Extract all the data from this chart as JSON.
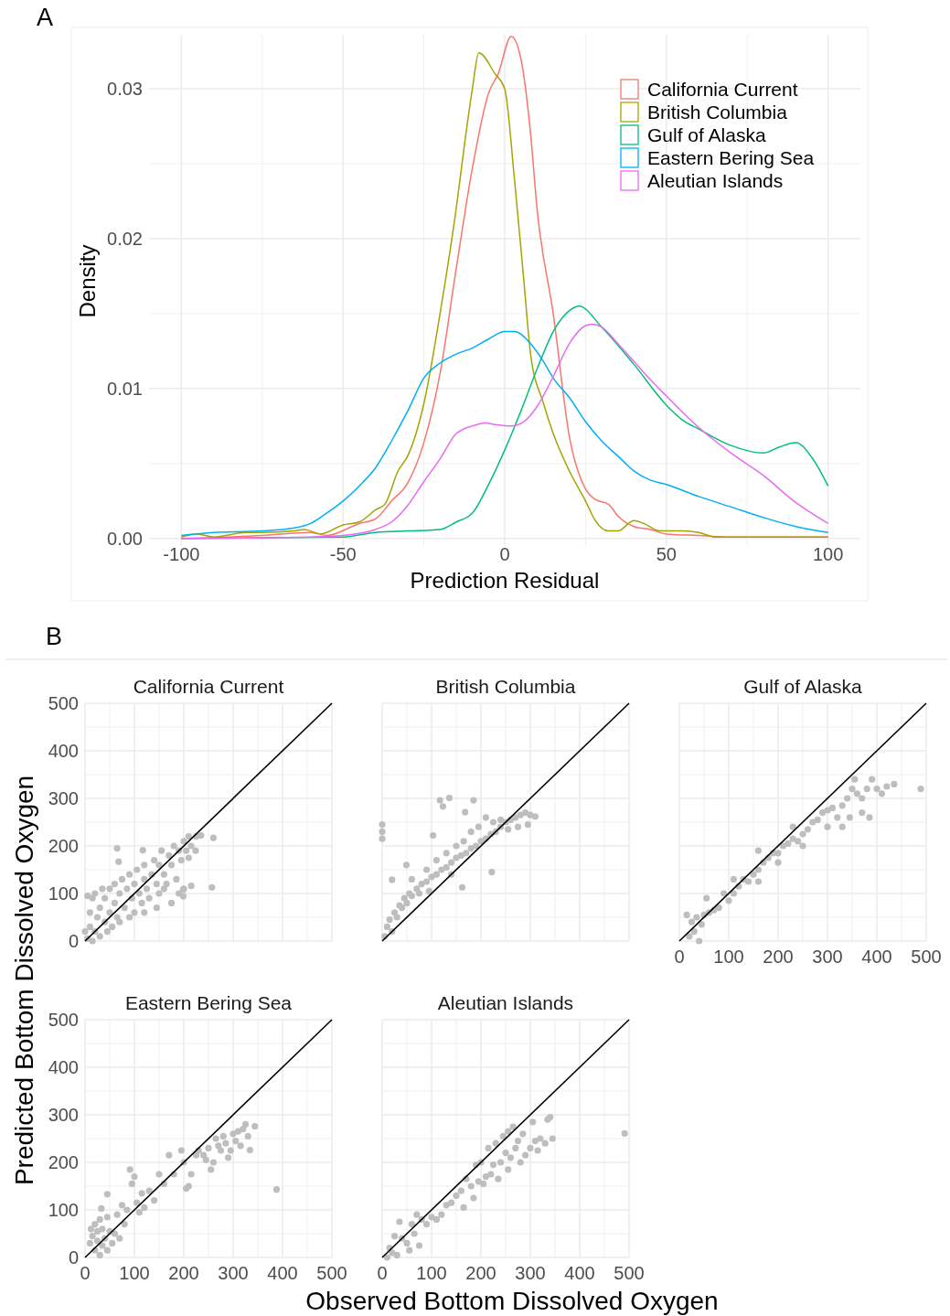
{
  "chart_data": [
    {
      "type": "line",
      "annotations": [
        "A"
      ],
      "xlabel": "Prediction Residual",
      "ylabel": "Density",
      "legend": "top right",
      "grid": true,
      "xlim": [
        -110,
        110
      ],
      "ylim": [
        -0.0005,
        0.0336
      ],
      "xticks": [
        -100,
        {
          "value": -75,
          "label": null
        },
        -50,
        {
          "value": -25,
          "label": null
        },
        0,
        {
          "value": 25,
          "label": null
        },
        50,
        {
          "value": 75,
          "label": null
        },
        100
      ],
      "yticks": [
        {
          "value": 0,
          "label": "0.00"
        },
        {
          "value": 0.005,
          "label": null
        },
        {
          "value": 0.01,
          "label": "0.01"
        },
        {
          "value": 0.015,
          "label": null
        },
        {
          "value": 0.02,
          "label": "0.02"
        },
        {
          "value": 0.025,
          "label": null
        },
        {
          "value": 0.03,
          "label": "0.03"
        }
      ],
      "series": [
        {
          "name": "California Current",
          "color": "#f8766d",
          "x": [
            -100,
            -75,
            -60,
            -55,
            -45,
            -40,
            -35,
            -30,
            -25,
            -20,
            -15,
            -10,
            -5,
            -2,
            2,
            5,
            8,
            10,
            15,
            20,
            25,
            28,
            32,
            35,
            40,
            45,
            50,
            60,
            70,
            100
          ],
          "values": [
            0,
            0.0002,
            0.0004,
            0.0002,
            0.001,
            0.0013,
            0.0025,
            0.0037,
            0.0064,
            0.011,
            0.018,
            0.0247,
            0.0297,
            0.031,
            0.0335,
            0.032,
            0.027,
            0.022,
            0.015,
            0.0068,
            0.0033,
            0.0026,
            0.0023,
            0.0015,
            0.0008,
            0.0006,
            0.0003,
            0.0002,
            0.0001,
            0.0001
          ]
        },
        {
          "name": "British Columbia",
          "color": "#a3a500",
          "x": [
            -100,
            -95,
            -90,
            -80,
            -75,
            -65,
            -62,
            -57,
            -50,
            -45,
            -40,
            -37,
            -33,
            -30,
            -25,
            -20,
            -15,
            -12,
            -10,
            -8,
            -3,
            0,
            3,
            6,
            8,
            12,
            15,
            20,
            25,
            28,
            32,
            35,
            40,
            43,
            48,
            55,
            60,
            65,
            100
          ],
          "values": [
            0.0001,
            0.0003,
            0.0001,
            0.0004,
            0.0004,
            0.0005,
            0.0006,
            0.0003,
            0.0009,
            0.0011,
            0.0019,
            0.0023,
            0.0045,
            0.0055,
            0.009,
            0.015,
            0.022,
            0.027,
            0.03,
            0.0324,
            0.031,
            0.03,
            0.024,
            0.017,
            0.0123,
            0.009,
            0.007,
            0.0045,
            0.0025,
            0.0012,
            0.0005,
            0.0005,
            0.0012,
            0.001,
            0.0005,
            0.0005,
            0.0004,
            0.0001,
            0.0001
          ]
        },
        {
          "name": "Gulf of Alaska",
          "color": "#00bf7d",
          "x": [
            -100,
            -50,
            -40,
            -30,
            -20,
            -15,
            -10,
            -5,
            0,
            5,
            10,
            15,
            20,
            23,
            30,
            40,
            50,
            55,
            60,
            70,
            80,
            85,
            90,
            95,
            100
          ],
          "values": [
            0,
            0.0001,
            0.0004,
            0.0005,
            0.0006,
            0.0011,
            0.0017,
            0.0036,
            0.0059,
            0.0085,
            0.0113,
            0.0138,
            0.0152,
            0.0155,
            0.0141,
            0.0116,
            0.0089,
            0.0079,
            0.0073,
            0.0062,
            0.0057,
            0.0061,
            0.0064,
            0.0054,
            0.0035
          ]
        },
        {
          "name": "Eastern Bering Sea",
          "color": "#00b0f6",
          "x": [
            -100,
            -90,
            -75,
            -65,
            -60,
            -55,
            -50,
            -45,
            -40,
            -35,
            -30,
            -25,
            -20,
            -15,
            -10,
            -5,
            0,
            3,
            8,
            12,
            15,
            20,
            25,
            30,
            35,
            40,
            45,
            50,
            60,
            70,
            80,
            90,
            100
          ],
          "values": [
            0.0002,
            0.0004,
            0.0005,
            0.0007,
            0.001,
            0.0017,
            0.0025,
            0.0035,
            0.0047,
            0.0065,
            0.0085,
            0.0107,
            0.0117,
            0.0123,
            0.0127,
            0.0133,
            0.0138,
            0.0138,
            0.013,
            0.0118,
            0.0107,
            0.0094,
            0.0078,
            0.0065,
            0.0055,
            0.0045,
            0.0039,
            0.0036,
            0.0028,
            0.0021,
            0.0014,
            0.0008,
            0.0004
          ]
        },
        {
          "name": "Aleutian Islands",
          "color": "#e76bf3",
          "x": [
            -100,
            -60,
            -50,
            -40,
            -35,
            -30,
            -25,
            -20,
            -15,
            -10,
            -6,
            -3,
            2,
            6,
            10,
            15,
            20,
            25,
            27,
            30,
            35,
            40,
            45,
            50,
            60,
            70,
            80,
            90,
            100
          ],
          "values": [
            0,
            0.0001,
            0.0002,
            0.0006,
            0.0011,
            0.0022,
            0.0038,
            0.0053,
            0.007,
            0.0075,
            0.0077,
            0.0076,
            0.0075,
            0.0078,
            0.0088,
            0.0108,
            0.013,
            0.0142,
            0.0143,
            0.0141,
            0.013,
            0.0118,
            0.0106,
            0.0095,
            0.0074,
            0.0057,
            0.0042,
            0.0024,
            0.001
          ]
        }
      ]
    },
    {
      "type": "scatter",
      "title": "California Current",
      "annotations": [
        "B"
      ],
      "ylabel": "Predicted Bottom Dissolved Oxygen",
      "grid": true,
      "tick_labels": "y",
      "xlim": [
        0,
        500
      ],
      "ylim": [
        0,
        500
      ],
      "xticks": [
        0,
        {
          "value": 50,
          "label": null
        },
        100,
        {
          "value": 150,
          "label": null
        },
        200,
        {
          "value": 250,
          "label": null
        },
        300,
        {
          "value": 350,
          "label": null
        },
        400,
        {
          "value": 450,
          "label": null
        },
        500
      ],
      "yticks": [
        0,
        {
          "value": 50,
          "label": null
        },
        100,
        {
          "value": 150,
          "label": null
        },
        200,
        {
          "value": 250,
          "label": null
        },
        300,
        {
          "value": 350,
          "label": null
        },
        400,
        {
          "value": 450,
          "label": null
        },
        500
      ],
      "series": [
        {
          "marker": "circle",
          "color": "#bebebe",
          "x": [
            5,
            10,
            10,
            15,
            20,
            20,
            25,
            30,
            30,
            35,
            40,
            40,
            45,
            50,
            50,
            55,
            60,
            60,
            65,
            70,
            70,
            75,
            80,
            85,
            90,
            90,
            95,
            100,
            100,
            105,
            110,
            115,
            120,
            120,
            125,
            130,
            135,
            140,
            145,
            150,
            150,
            155,
            160,
            165,
            170,
            175,
            180,
            185,
            190,
            195,
            200,
            205,
            210,
            215,
            190,
            200,
            175,
            160,
            225,
            210,
            145,
            120,
            5,
            15,
            0,
            65,
            68,
            117,
            235,
            260,
            199,
            215,
            257,
            199,
            224
          ],
          "values": [
            5,
            30,
            60,
            90,
            20,
            100,
            50,
            10,
            70,
            110,
            40,
            90,
            20,
            60,
            110,
            30,
            80,
            120,
            50,
            100,
            40,
            130,
            70,
            110,
            50,
            140,
            90,
            120,
            60,
            150,
            100,
            80,
            130,
            160,
            110,
            90,
            140,
            170,
            120,
            100,
            160,
            190,
            140,
            120,
            180,
            160,
            200,
            130,
            190,
            170,
            210,
            190,
            220,
            200,
            100,
            110,
            80,
            110,
            220,
            175,
            70,
            60,
            95,
            0,
            20,
            195,
            167,
            191,
            222,
            217,
            108,
            116,
            113,
            94,
            190
          ]
        },
        {
          "type": "line",
          "color": "#000000",
          "x": [
            0,
            500
          ],
          "values": [
            0,
            500
          ]
        }
      ]
    },
    {
      "type": "scatter",
      "title": "British Columbia",
      "grid": true,
      "tick_labels": false,
      "xlim": [
        0,
        500
      ],
      "ylim": [
        0,
        500
      ],
      "xticks": [
        0,
        {
          "value": 50,
          "label": null
        },
        100,
        {
          "value": 150,
          "label": null
        },
        200,
        {
          "value": 250,
          "label": null
        },
        300,
        {
          "value": 350,
          "label": null
        },
        400,
        {
          "value": 450,
          "label": null
        },
        500
      ],
      "yticks": [
        0,
        {
          "value": 50,
          "label": null
        },
        100,
        {
          "value": 150,
          "label": null
        },
        200,
        {
          "value": 250,
          "label": null
        },
        300,
        {
          "value": 350,
          "label": null
        },
        400,
        {
          "value": 450,
          "label": null
        },
        500
      ],
      "series": [
        {
          "marker": "circle",
          "color": "#bebebe",
          "x": [
            0,
            0,
            0,
            5,
            10,
            15,
            20,
            25,
            30,
            35,
            40,
            45,
            50,
            55,
            60,
            70,
            75,
            80,
            90,
            100,
            110,
            120,
            130,
            140,
            150,
            160,
            170,
            180,
            190,
            200,
            210,
            220,
            230,
            240,
            250,
            260,
            270,
            280,
            290,
            300,
            310,
            295,
            275,
            255,
            240,
            225,
            210,
            195,
            180,
            165,
            150,
            130,
            110,
            90,
            60,
            117,
            136,
            123,
            185,
            103,
            168,
            49,
            20,
            222,
            162,
            95,
            140
          ],
          "values": [
            215,
            230,
            245,
            10,
            30,
            45,
            20,
            60,
            50,
            75,
            70,
            90,
            80,
            100,
            95,
            110,
            100,
            120,
            125,
            135,
            140,
            150,
            155,
            165,
            175,
            180,
            185,
            195,
            200,
            210,
            215,
            225,
            230,
            240,
            250,
            255,
            260,
            265,
            270,
            265,
            262,
            245,
            240,
            235,
            255,
            250,
            260,
            240,
            230,
            210,
            200,
            185,
            170,
            150,
            130,
            296,
            301,
            283,
            296,
            222,
            271,
            160,
            129,
            145,
            113,
            105,
            140
          ]
        },
        {
          "type": "line",
          "color": "#000000",
          "x": [
            0,
            500
          ],
          "values": [
            0,
            500
          ]
        }
      ]
    },
    {
      "type": "scatter",
      "title": "Gulf of Alaska",
      "grid": true,
      "tick_labels": "x",
      "xlim": [
        0,
        500
      ],
      "ylim": [
        0,
        500
      ],
      "xticks": [
        0,
        {
          "value": 50,
          "label": null
        },
        100,
        {
          "value": 150,
          "label": null
        },
        200,
        {
          "value": 250,
          "label": null
        },
        300,
        {
          "value": 350,
          "label": null
        },
        400,
        {
          "value": 450,
          "label": null
        },
        500
      ],
      "yticks": [
        0,
        {
          "value": 50,
          "label": null
        },
        100,
        {
          "value": 150,
          "label": null
        },
        200,
        {
          "value": 250,
          "label": null
        },
        300,
        {
          "value": 350,
          "label": null
        },
        400,
        {
          "value": 450,
          "label": null
        },
        500
      ],
      "series": [
        {
          "marker": "circle",
          "color": "#bebebe",
          "x": [
            15,
            20,
            25,
            30,
            35,
            40,
            45,
            50,
            60,
            70,
            80,
            90,
            100,
            110,
            120,
            130,
            140,
            150,
            160,
            170,
            180,
            190,
            200,
            210,
            220,
            230,
            240,
            250,
            260,
            270,
            280,
            290,
            300,
            310,
            320,
            330,
            340,
            350,
            355,
            360,
            370,
            380,
            390,
            400,
            410,
            420,
            435,
            300,
            330,
            345,
            370,
            385,
            250,
            200,
            160,
            110,
            55,
            489,
            160,
            230
          ],
          "values": [
            55,
            10,
            40,
            20,
            50,
            0,
            35,
            55,
            60,
            65,
            70,
            100,
            85,
            100,
            115,
            130,
            125,
            140,
            150,
            165,
            175,
            185,
            185,
            200,
            205,
            215,
            210,
            225,
            235,
            250,
            255,
            270,
            275,
            280,
            260,
            285,
            300,
            320,
            340,
            310,
            300,
            320,
            340,
            320,
            310,
            325,
            330,
            240,
            240,
            260,
            270,
            260,
            200,
            165,
            190,
            130,
            90,
            320,
            125,
            240
          ]
        },
        {
          "type": "line",
          "color": "#000000",
          "x": [
            0,
            500
          ],
          "values": [
            0,
            500
          ]
        }
      ]
    },
    {
      "type": "scatter",
      "title": "Eastern Bering Sea",
      "grid": true,
      "xlim": [
        0,
        500
      ],
      "ylim": [
        0,
        500
      ],
      "xticks": [
        0,
        {
          "value": 50,
          "label": null
        },
        100,
        {
          "value": 150,
          "label": null
        },
        200,
        {
          "value": 250,
          "label": null
        },
        300,
        {
          "value": 350,
          "label": null
        },
        400,
        {
          "value": 450,
          "label": null
        },
        500
      ],
      "yticks": [
        0,
        {
          "value": 50,
          "label": null
        },
        100,
        {
          "value": 150,
          "label": null
        },
        200,
        {
          "value": 250,
          "label": null
        },
        300,
        {
          "value": 350,
          "label": null
        },
        400,
        {
          "value": 450,
          "label": null
        },
        500
      ],
      "series": [
        {
          "marker": "circle",
          "color": "#bebebe",
          "x": [
            10,
            12,
            15,
            20,
            20,
            25,
            25,
            30,
            30,
            35,
            35,
            40,
            45,
            45,
            50,
            55,
            60,
            65,
            70,
            75,
            80,
            85,
            91,
            45,
            33,
            95,
            100,
            105,
            110,
            115,
            120,
            130,
            140,
            150,
            160,
            170,
            180,
            195,
            200,
            205,
            210,
            215,
            225,
            230,
            240,
            250,
            255,
            260,
            265,
            270,
            280,
            285,
            290,
            295,
            300,
            305,
            310,
            315,
            320,
            325,
            330,
            334,
            344,
            388,
            275,
            245
          ],
          "values": [
            30,
            60,
            45,
            15,
            70,
            35,
            55,
            5,
            80,
            25,
            60,
            40,
            15,
            85,
            55,
            30,
            50,
            90,
            40,
            110,
            70,
            100,
            185,
            133,
            103,
            155,
            170,
            115,
            95,
            135,
            105,
            140,
            120,
            175,
            155,
            215,
            175,
            225,
            200,
            145,
            150,
            175,
            215,
            225,
            215,
            230,
            185,
            200,
            250,
            235,
            255,
            240,
            210,
            225,
            260,
            245,
            265,
            235,
            270,
            280,
            255,
            226,
            276,
            143,
            225,
            205
          ]
        },
        {
          "type": "line",
          "color": "#000000",
          "x": [
            0,
            500
          ],
          "values": [
            0,
            500
          ]
        }
      ]
    },
    {
      "type": "scatter",
      "title": "Aleutian Islands",
      "xlabel": "Observed Bottom Dissolved Oxygen",
      "grid": true,
      "tick_labels": "x",
      "xlim": [
        0,
        500
      ],
      "ylim": [
        0,
        500
      ],
      "xticks": [
        0,
        {
          "value": 50,
          "label": null
        },
        100,
        {
          "value": 150,
          "label": null
        },
        200,
        {
          "value": 250,
          "label": null
        },
        300,
        {
          "value": 350,
          "label": null
        },
        400,
        {
          "value": 450,
          "label": null
        },
        500
      ],
      "yticks": [
        0,
        {
          "value": 50,
          "label": null
        },
        100,
        {
          "value": 150,
          "label": null
        },
        200,
        {
          "value": 250,
          "label": null
        },
        300,
        {
          "value": 350,
          "label": null
        },
        400,
        {
          "value": 450,
          "label": null
        },
        500
      ],
      "series": [
        {
          "marker": "circle",
          "color": "#bebebe",
          "x": [
            10,
            15,
            20,
            25,
            30,
            35,
            40,
            50,
            55,
            60,
            65,
            70,
            75,
            80,
            90,
            100,
            110,
            120,
            130,
            140,
            150,
            160,
            165,
            170,
            180,
            185,
            190,
            195,
            200,
            205,
            210,
            215,
            220,
            230,
            235,
            240,
            245,
            250,
            255,
            260,
            265,
            270,
            275,
            280,
            285,
            290,
            300,
            305,
            310,
            315,
            320,
            330,
            335,
            340,
            345,
            491,
            225,
            255
          ],
          "values": [
            0,
            20,
            10,
            45,
            5,
            75,
            40,
            30,
            15,
            70,
            50,
            90,
            25,
            80,
            70,
            85,
            80,
            90,
            110,
            115,
            130,
            140,
            105,
            165,
            150,
            125,
            195,
            160,
            200,
            155,
            170,
            230,
            175,
            240,
            165,
            200,
            255,
            220,
            265,
            210,
            275,
            230,
            245,
            200,
            260,
            215,
            230,
            285,
            245,
            225,
            250,
            240,
            290,
            295,
            250,
            261,
            195,
            185
          ]
        },
        {
          "type": "line",
          "color": "#000000",
          "x": [
            0,
            500
          ],
          "values": [
            0,
            500
          ]
        }
      ]
    }
  ]
}
